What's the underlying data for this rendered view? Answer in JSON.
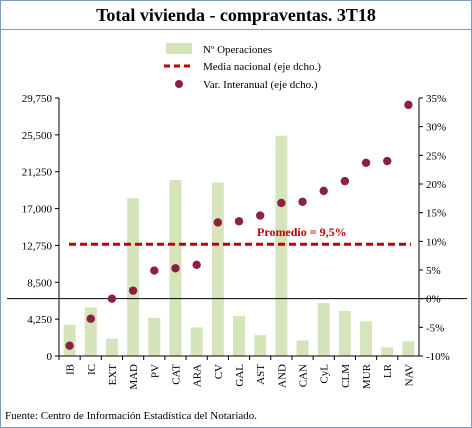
{
  "title": "Total vivienda - compraventas. 3T18",
  "source": "Fuente: Centro de Información Estadística del Notariado.",
  "colors": {
    "bars": "#d6e4bc",
    "media_line": "#c00000",
    "points": "#8b2040",
    "zero_line": "#000000"
  },
  "chart_data": {
    "type": "bar",
    "categories": [
      "IB",
      "IC",
      "EXT",
      "MAD",
      "PV",
      "CAT",
      "ARA",
      "CV",
      "GAL",
      "AST",
      "AND",
      "CAN",
      "CyL",
      "CLM",
      "MUR",
      "LR",
      "NAV"
    ],
    "series": [
      {
        "name": "Nº Operaciones",
        "type": "bar",
        "axis": "left",
        "values": [
          3600,
          5600,
          2000,
          18200,
          4400,
          20300,
          3300,
          20000,
          4600,
          2400,
          25400,
          1800,
          6100,
          5200,
          4000,
          1000,
          1700
        ]
      },
      {
        "name": "Media nacional (eje dcho.)",
        "type": "line",
        "axis": "right",
        "values": [
          9.5,
          9.5,
          9.5,
          9.5,
          9.5,
          9.5,
          9.5,
          9.5,
          9.5,
          9.5,
          9.5,
          9.5,
          9.5,
          9.5,
          9.5,
          9.5,
          9.5
        ]
      },
      {
        "name": "Var. Interanual (eje dcho.)",
        "type": "scatter",
        "axis": "right",
        "values": [
          -8.2,
          -3.5,
          0,
          1.4,
          4.9,
          5.3,
          5.9,
          13.3,
          13.5,
          14.5,
          16.7,
          16.9,
          18.8,
          20.5,
          23.7,
          24.0,
          33.8
        ]
      }
    ],
    "left_axis": {
      "ylim": [
        0,
        29750
      ],
      "ticks": [
        "0",
        "4,250",
        "8,500",
        "12,750",
        "17,000",
        "21,250",
        "25,500",
        "29,750"
      ]
    },
    "right_axis": {
      "ylim": [
        -10,
        35
      ],
      "ticks": [
        "-10%",
        "-5%",
        "0%",
        "5%",
        "10%",
        "15%",
        "20%",
        "25%",
        "30%",
        "35%"
      ]
    },
    "annotation": "Promedio = 9,5%",
    "legend_position": "top-center",
    "grid": false
  }
}
